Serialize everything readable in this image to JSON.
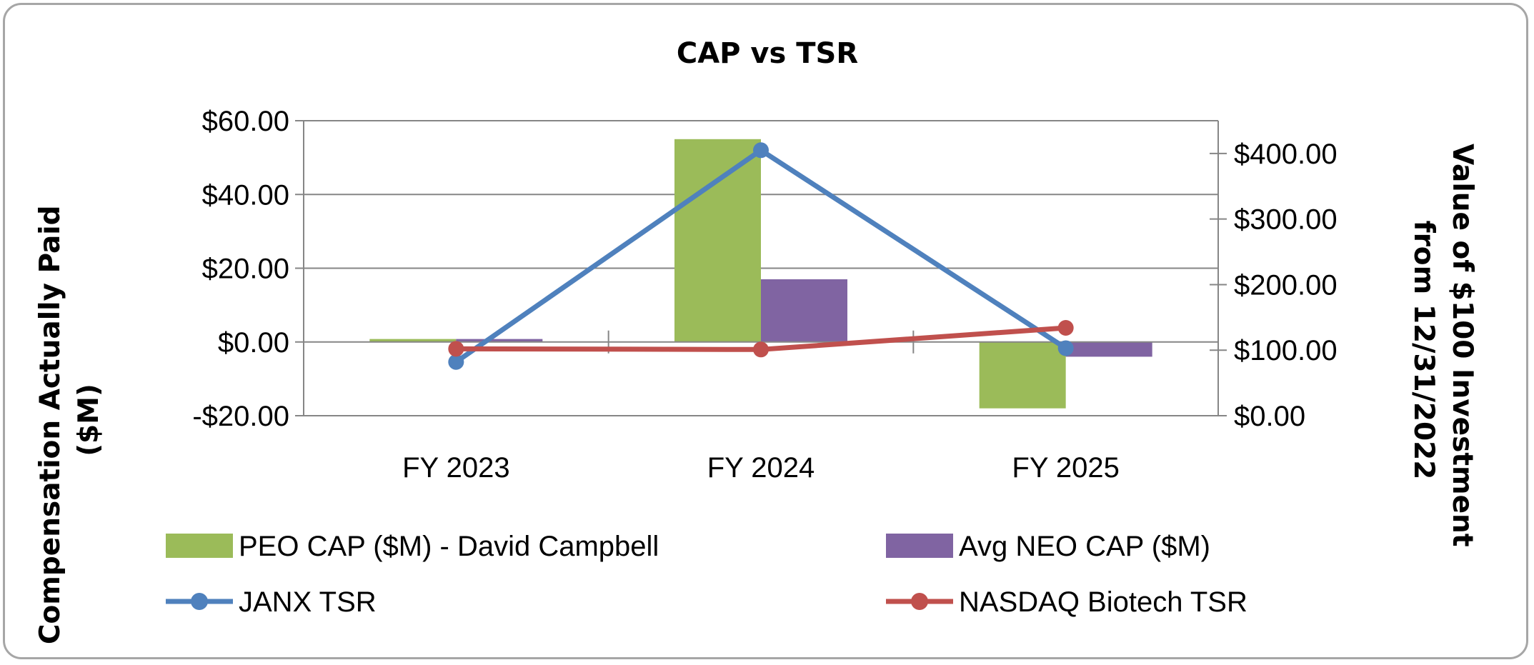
{
  "chart_data": {
    "type": "bar",
    "title": "CAP vs TSR",
    "categories": [
      "FY 2023",
      "FY 2024",
      "FY 2025"
    ],
    "y_left": {
      "label_lines": [
        "Compensation Actually Paid",
        "($M)"
      ],
      "range": [
        -20,
        60
      ],
      "ticks": [
        -20,
        0,
        20,
        40,
        60
      ],
      "tick_labels": [
        "-$20.00",
        "$0.00",
        "$20.00",
        "$40.00",
        "$60.00"
      ]
    },
    "y_right": {
      "label_lines": [
        "Value of $100 Investment",
        "from 12/31/2022"
      ],
      "range": [
        0,
        450
      ],
      "ticks": [
        0,
        100,
        200,
        300,
        400
      ],
      "tick_labels": [
        "$0.00",
        "$100.00",
        "$200.00",
        "$300.00",
        "$400.00"
      ]
    },
    "bar_series": [
      {
        "name": "PEO CAP ($M) - David Campbell",
        "color": "#9bbb59",
        "values": [
          0.8,
          55.0,
          -18.0
        ]
      },
      {
        "name": "Avg NEO CAP ($M)",
        "color": "#8064a2",
        "values": [
          0.8,
          17.0,
          -4.0
        ]
      }
    ],
    "line_series": [
      {
        "name": "JANX TSR",
        "color": "#4f81bd",
        "values": [
          82,
          405,
          103
        ]
      },
      {
        "name": "NASDAQ Biotech TSR",
        "color": "#c0504d",
        "values": [
          102,
          101,
          134
        ]
      }
    ],
    "grid": "horizontal",
    "legend_position": "bottom"
  }
}
